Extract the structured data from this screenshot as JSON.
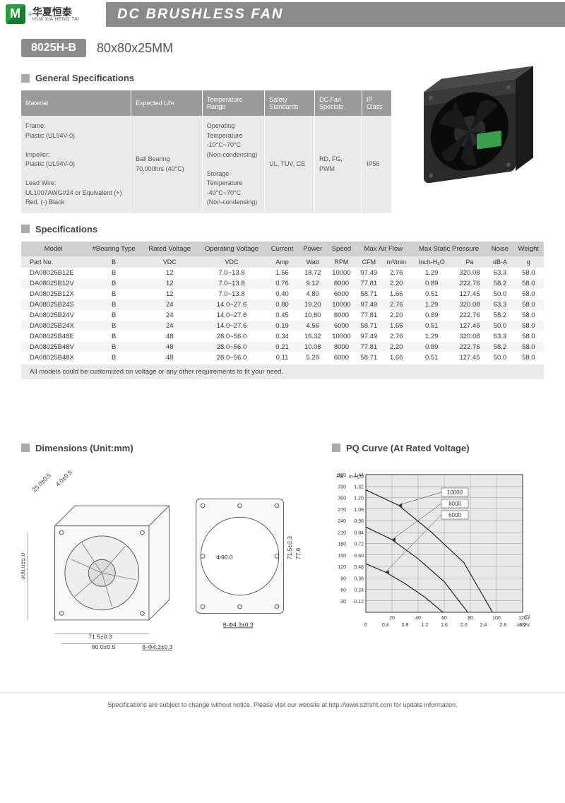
{
  "header": {
    "title": "DC BRUSHLESS FAN",
    "logo_cn": "华夏恒泰",
    "logo_en": "HUA XIA HENG TAI"
  },
  "model": {
    "badge": "8025H-B",
    "size": "80x80x25MM"
  },
  "sections": {
    "general": "General Specifications",
    "specs": "Specifications",
    "dims": "Dimensions (Unit:mm)",
    "pq": "PQ Curve (At Rated Voltage)"
  },
  "gen_specs": {
    "headers": [
      "Material",
      "Expected Life",
      "Temperature Range",
      "Safety Standards",
      "DC Fan Specials",
      "IP Class"
    ],
    "material": "Frame:\nPlastic (UL94V-0)\n\nImpeller:\nPlastic (UL94V-0)\n\nLead Wire:\nUL1007AWG#24 or Equivalent (+) Red, (-) Black",
    "expected": "Ball Bearing 70,000hrs (40°C)",
    "temp": "Operating Temperature\n-10°C~70°C\n(Non-condensing)\n\nStorage Temperature\n-40°C~70°C\n(Non-condensing)",
    "safety": "UL, TUV, CE",
    "specials": "RD, FG, PWM",
    "ip": "IP56"
  },
  "specs": {
    "headers": [
      "Model",
      "#Bearing Type",
      "Rated Voltage",
      "Operating Voltage",
      "Current",
      "Power",
      "Speed",
      "Max Air Flow",
      "",
      "Max Static Pressure",
      "",
      "Noise",
      "Weight"
    ],
    "units": [
      "Part No.",
      "B",
      "VDC",
      "VDC",
      "Amp",
      "Watt",
      "RPM",
      "CFM",
      "m³/min",
      "Inch-H₂O",
      "Pa",
      "dB-A",
      "g"
    ],
    "rows": [
      [
        "DA08025B12E",
        "B",
        "12",
        "7.0~13.8",
        "1.56",
        "18.72",
        "10000",
        "97.49",
        "2.76",
        "1.29",
        "320.08",
        "63.3",
        "58.0"
      ],
      [
        "DA08025B12V",
        "B",
        "12",
        "7.0~13.8",
        "0.76",
        "9.12",
        "8000",
        "77.81",
        "2.20",
        "0.89",
        "222.76",
        "58.2",
        "58.0"
      ],
      [
        "DA08025B12X",
        "B",
        "12",
        "7.0~13.8",
        "0.40",
        "4.80",
        "6000",
        "58.71",
        "1.66",
        "0.51",
        "127.45",
        "50.0",
        "58.0"
      ],
      [
        "DA08025B24S",
        "B",
        "24",
        "14.0~27.6",
        "0.80",
        "19.20",
        "10000",
        "97.49",
        "2.76",
        "1.29",
        "320.08",
        "63.3",
        "58.0"
      ],
      [
        "DA08025B24V",
        "B",
        "24",
        "14.0~27.6",
        "0.45",
        "10.80",
        "8000",
        "77.81",
        "2.20",
        "0.89",
        "222.76",
        "58.2",
        "58.0"
      ],
      [
        "DA08025B24X",
        "B",
        "24",
        "14.0~27.6",
        "0.19",
        "4.56",
        "6000",
        "58.71",
        "1.66",
        "0.51",
        "127.45",
        "50.0",
        "58.0"
      ],
      [
        "DA08025B48E",
        "B",
        "48",
        "28.0~56.0",
        "0.34",
        "16.32",
        "10000",
        "97.49",
        "2.76",
        "1.29",
        "320.08",
        "63.3",
        "58.0"
      ],
      [
        "DA08025B48V",
        "B",
        "48",
        "28.0~56.0",
        "0.21",
        "10.08",
        "8000",
        "77.81",
        "2.20",
        "0.89",
        "222.76",
        "58.2",
        "58.0"
      ],
      [
        "DA08025B48X",
        "B",
        "48",
        "28.0~56.0",
        "0.11",
        "5.28",
        "6000",
        "58.71",
        "1.66",
        "0.51",
        "127.45",
        "50.0",
        "58.0"
      ]
    ],
    "note": "All models could be customized on voltage or any other requirements to fit your need."
  },
  "dims": {
    "labels": [
      "25.0±0.5",
      "4.0±0.5",
      "300.0±5.0",
      "71.5±0.3",
      "80.0±0.5",
      "Φ90.0",
      "71.5±0.3",
      "77.6",
      "8-Φ4.3±0.3",
      "8-Φ4.3±0.3"
    ]
  },
  "pq": {
    "y_pa": [
      360,
      330,
      300,
      270,
      240,
      210,
      180,
      150,
      120,
      90,
      60,
      30
    ],
    "y_inh2o": [
      1.44,
      1.32,
      1.2,
      1.08,
      0.96,
      0.84,
      0.72,
      0.6,
      0.48,
      0.36,
      0.24,
      0.12
    ],
    "x_cfm": [
      20,
      40,
      60,
      80,
      100,
      120
    ],
    "x_m3min": [
      "0",
      "0.4",
      "0.8",
      "1.2",
      "1.6",
      "2.0",
      "2.4",
      "2.8",
      "3.2"
    ],
    "y_label_pa": "Pa",
    "y_label_inh2o": "In-H₂O",
    "x_label_cfm": "CFM",
    "x_label_m3": "m³/min",
    "curves": [
      "10000",
      "8000",
      "6000"
    ],
    "curve_data": {
      "10000": [
        [
          0,
          320
        ],
        [
          25,
          280
        ],
        [
          50,
          210
        ],
        [
          75,
          130
        ],
        [
          97,
          0
        ]
      ],
      "8000": [
        [
          0,
          223
        ],
        [
          20,
          190
        ],
        [
          40,
          140
        ],
        [
          60,
          80
        ],
        [
          78,
          0
        ]
      ],
      "6000": [
        [
          0,
          127
        ],
        [
          15,
          105
        ],
        [
          30,
          75
        ],
        [
          45,
          40
        ],
        [
          59,
          0
        ]
      ]
    },
    "grid_color": "#888",
    "line_color": "#222",
    "bg": "#e8e8e8"
  },
  "footer": "Specifications are subject to change without notice. Please visit our website at http://www.szhxht.com for update information."
}
